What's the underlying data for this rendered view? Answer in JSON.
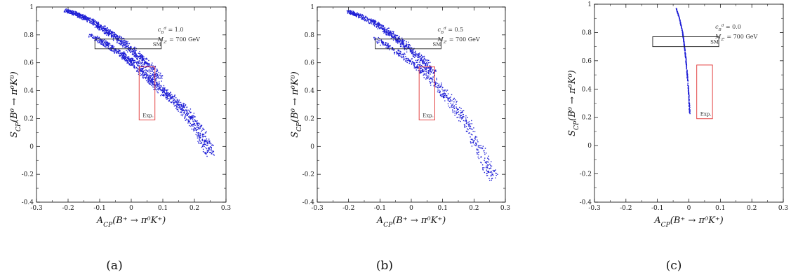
{
  "chart_data": [
    {
      "type": "scatter",
      "panel_caption": "(a)",
      "xlabel": "A_CP(B⁺ → π⁰K⁺)",
      "ylabel": "S_CP(B⁰ → π⁰K⁰)",
      "xlim": [
        -0.3,
        0.3
      ],
      "ylim": [
        -0.4,
        1.0
      ],
      "x_ticks": [
        "-0.3",
        "-0.2",
        "-0.1",
        "0",
        "0.1",
        "0.2",
        "0.3"
      ],
      "y_ticks": [
        "-0.4",
        "-0.2",
        "0",
        "0.2",
        "0.4",
        "0.6",
        "0.8",
        "1"
      ],
      "annotation_lines": [
        "c_B^d = 1.0",
        "M_Z' = 700 GeV"
      ],
      "point_color": "#1f1fd6",
      "sm_box": {
        "label": "SM",
        "x": [
          -0.115,
          0.095
        ],
        "y": [
          0.7,
          0.77
        ]
      },
      "exp_box": {
        "label": "Exp.",
        "x": [
          0.025,
          0.075
        ],
        "y": [
          0.19,
          0.57
        ]
      },
      "series": [
        {
          "band": "upper",
          "x": [
            -0.21,
            -0.18,
            -0.15,
            -0.12,
            -0.09,
            -0.06,
            -0.03,
            0.0,
            0.03,
            0.06,
            0.09
          ],
          "y": [
            0.975,
            0.955,
            0.925,
            0.89,
            0.845,
            0.8,
            0.75,
            0.695,
            0.635,
            0.565,
            0.485
          ],
          "width": 0.04,
          "n": 900
        },
        {
          "band": "lower",
          "x": [
            -0.13,
            -0.1,
            -0.07,
            -0.04,
            -0.01,
            0.02,
            0.05,
            0.08,
            0.11,
            0.14,
            0.17,
            0.2,
            0.23,
            0.25
          ],
          "y": [
            0.8,
            0.76,
            0.72,
            0.675,
            0.625,
            0.57,
            0.505,
            0.44,
            0.38,
            0.32,
            0.255,
            0.17,
            0.05,
            -0.05
          ],
          "width": 0.05,
          "n": 1100
        }
      ]
    },
    {
      "type": "scatter",
      "panel_caption": "(b)",
      "xlabel": "A_CP(B⁺ → π⁰K⁺)",
      "ylabel": "S_CP(B⁰ → π⁰K⁰)",
      "xlim": [
        -0.3,
        0.3
      ],
      "ylim": [
        -0.4,
        1.0
      ],
      "x_ticks": [
        "-0.3",
        "-0.2",
        "-0.1",
        "0",
        "0.1",
        "0.2",
        "0.3"
      ],
      "y_ticks": [
        "-0.4",
        "-0.2",
        "0",
        "0.2",
        "0.4",
        "0.6",
        "0.8",
        "1"
      ],
      "annotation_lines": [
        "c_B^d = 0.5",
        "M_Z' = 700 GeV"
      ],
      "point_color": "#1f1fd6",
      "sm_box": {
        "label": "SM",
        "x": [
          -0.115,
          0.095
        ],
        "y": [
          0.7,
          0.77
        ]
      },
      "exp_box": {
        "label": "Exp.",
        "x": [
          0.025,
          0.075
        ],
        "y": [
          0.19,
          0.57
        ]
      },
      "series": [
        {
          "band": "upper",
          "x": [
            -0.2,
            -0.17,
            -0.14,
            -0.11,
            -0.08,
            -0.05,
            -0.02,
            0.01,
            0.04,
            0.07
          ],
          "y": [
            0.965,
            0.94,
            0.91,
            0.875,
            0.83,
            0.78,
            0.725,
            0.665,
            0.6,
            0.53
          ],
          "width": 0.04,
          "n": 700
        },
        {
          "band": "lower",
          "x": [
            -0.12,
            -0.09,
            -0.06,
            -0.03,
            0.0,
            0.03,
            0.06,
            0.09,
            0.12,
            0.15,
            0.18,
            0.21,
            0.24,
            0.26
          ],
          "y": [
            0.78,
            0.74,
            0.7,
            0.655,
            0.605,
            0.55,
            0.49,
            0.42,
            0.34,
            0.25,
            0.15,
            0.02,
            -0.13,
            -0.22
          ],
          "width": 0.05,
          "n": 600
        }
      ]
    },
    {
      "type": "scatter",
      "panel_caption": "(c)",
      "xlabel": "A_CP(B⁺ → π⁰K⁺)",
      "ylabel": "S_CP(B⁰ → π⁰K⁰)",
      "xlim": [
        -0.3,
        0.3
      ],
      "ylim": [
        -0.4,
        1.0
      ],
      "x_ticks": [
        "-0.3",
        "-0.2",
        "-0.1",
        "0",
        "0.1",
        "0.2",
        "0.3"
      ],
      "y_ticks": [
        "-0.4",
        "-0.2",
        "0",
        "0.2",
        "0.4",
        "0.6",
        "0.8",
        "1"
      ],
      "annotation_lines": [
        "c_B^d = 0.0",
        "M_Z' = 700 GeV"
      ],
      "point_color": "#1f1fd6",
      "sm_box": {
        "label": "SM",
        "x": [
          -0.115,
          0.095
        ],
        "y": [
          0.7,
          0.77
        ]
      },
      "exp_box": {
        "label": "Exp.",
        "x": [
          0.025,
          0.075
        ],
        "y": [
          0.19,
          0.57
        ]
      },
      "series": [
        {
          "band": "thin",
          "x": [
            -0.04,
            -0.03,
            -0.02,
            -0.015,
            -0.01,
            -0.005,
            0.0,
            0.003
          ],
          "y": [
            0.97,
            0.9,
            0.8,
            0.72,
            0.62,
            0.5,
            0.35,
            0.22
          ],
          "width": 0.004,
          "n": 400
        }
      ]
    }
  ]
}
